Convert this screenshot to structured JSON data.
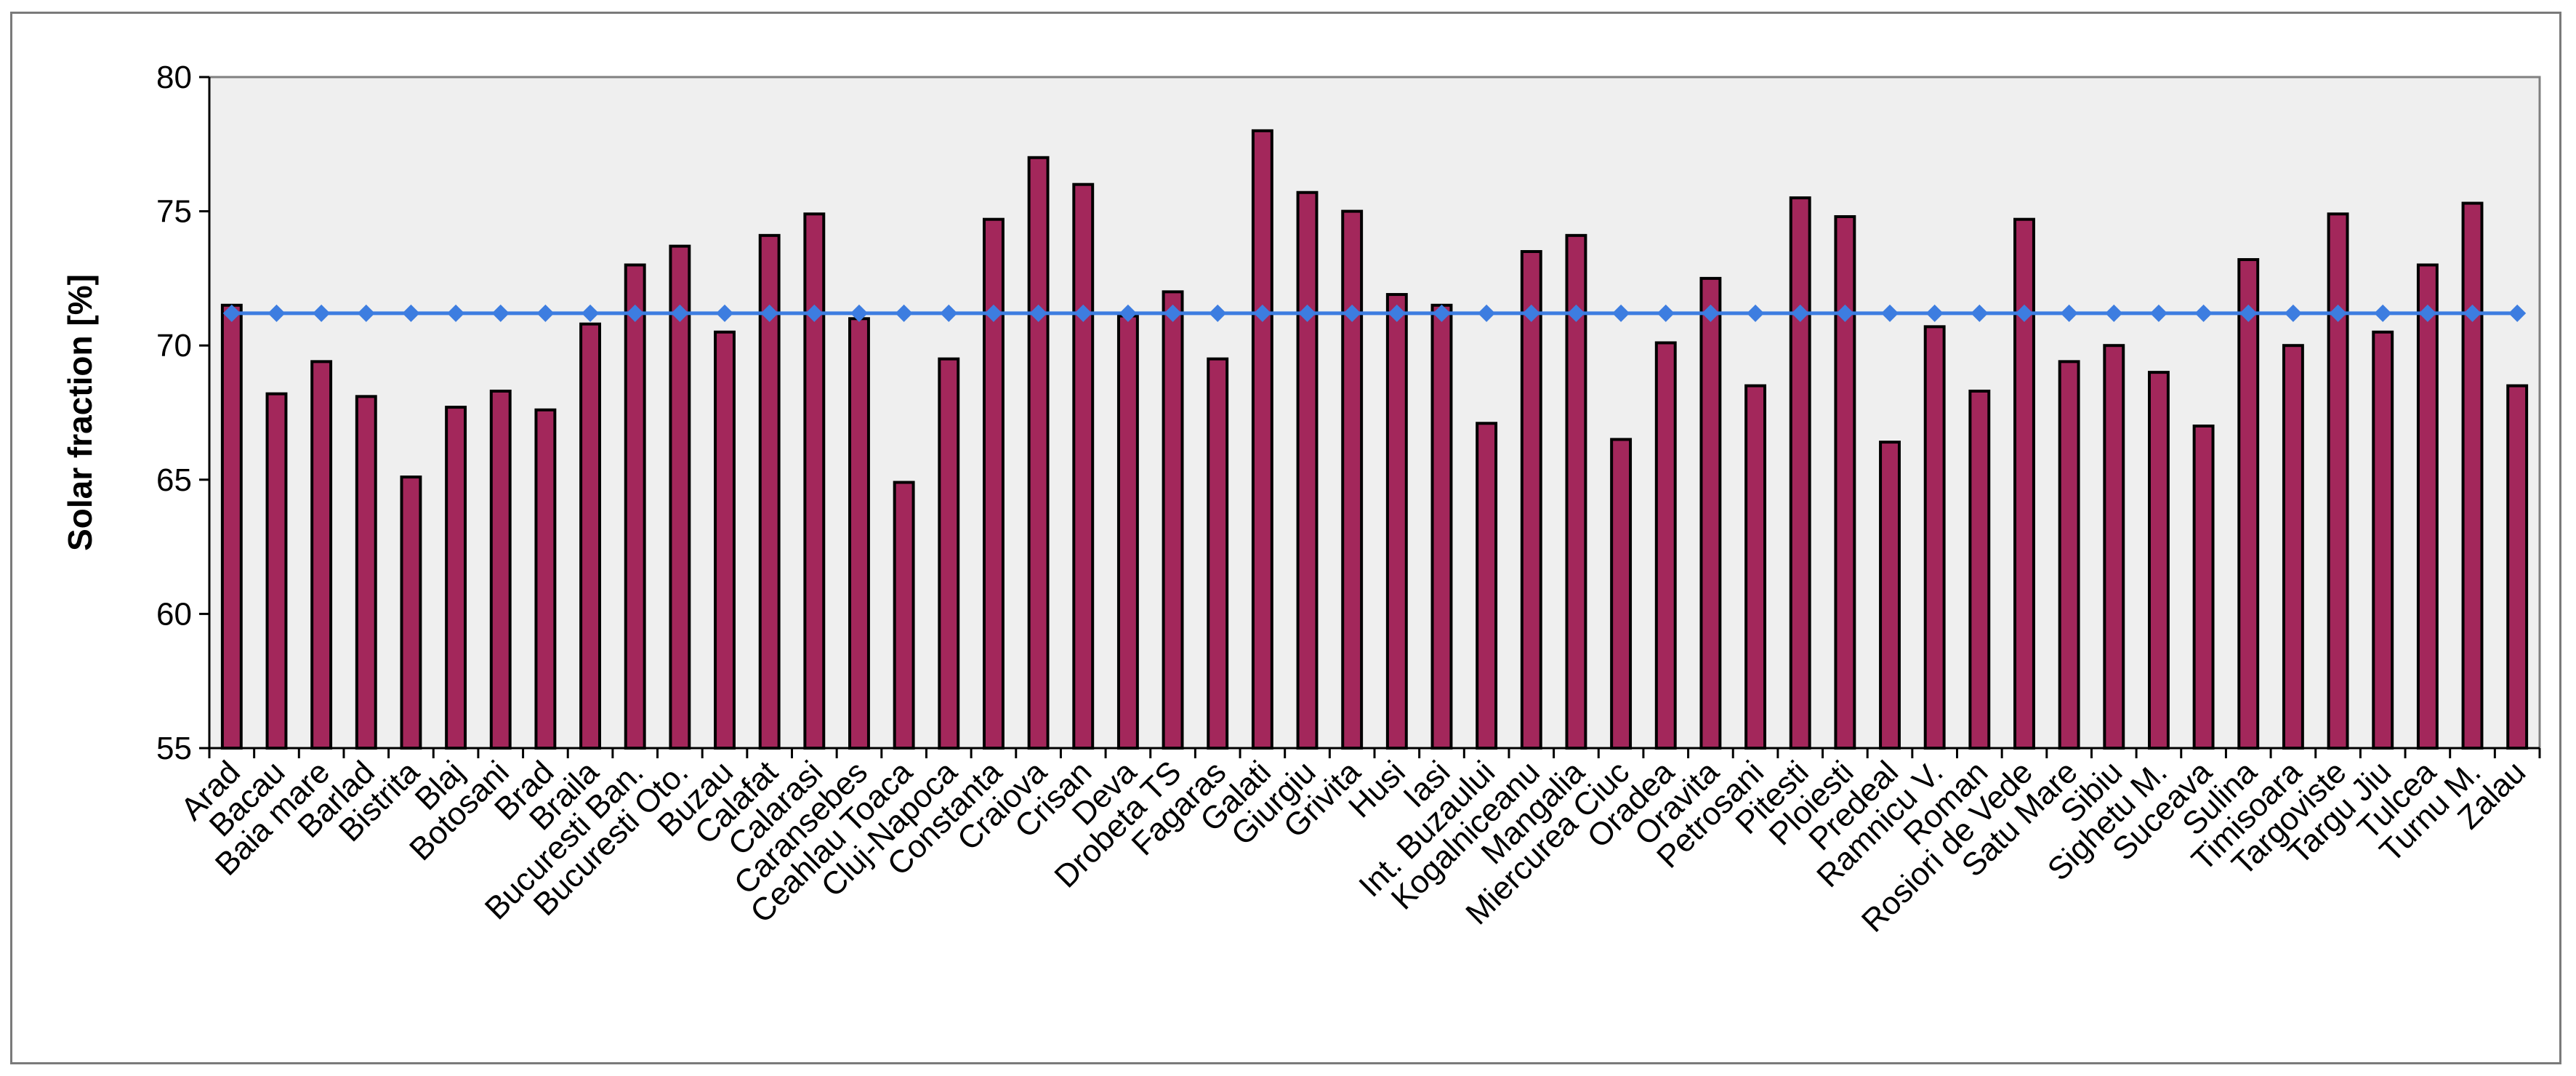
{
  "chart_data": {
    "type": "bar",
    "ylabel": "Solar fraction [%]",
    "xlabel": "",
    "ylim": [
      55,
      80
    ],
    "yticks": [
      55,
      60,
      65,
      70,
      75,
      80
    ],
    "grid": false,
    "categories": [
      "Arad",
      "Bacau",
      "Baia mare",
      "Barlad",
      "Bistrita",
      "Blaj",
      "Botosani",
      "Brad",
      "Braila",
      "Bucuresti Ban.",
      "Bucuresti Oto.",
      "Buzau",
      "Calafat",
      "Calarasi",
      "Caransebes",
      "Ceahlau Toaca",
      "Cluj-Napoca",
      "Constanta",
      "Craiova",
      "Crisan",
      "Deva",
      "Drobeta TS",
      "Fagaras",
      "Galati",
      "Giurgiu",
      "Grivita",
      "Husi",
      "Iasi",
      "Int. Buzaului",
      "Kogalniceanu",
      "Mangalia",
      "Miercurea Ciuc",
      "Oradea",
      "Oravita",
      "Petrosani",
      "Pitesti",
      "Ploiesti",
      "Predeal",
      "Ramnicu V.",
      "Roman",
      "Rosiori de Vede",
      "Satu Mare",
      "Sibiu",
      "Sighetu M.",
      "Suceava",
      "Sulina",
      "Timisoara",
      "Targoviste",
      "Targu Jiu",
      "Tulcea",
      "Turnu M.",
      "Zalau"
    ],
    "series": [
      {
        "type": "bar",
        "color": "#a3275b",
        "values": [
          71.5,
          68.2,
          69.4,
          68.1,
          65.1,
          67.7,
          68.3,
          67.6,
          70.8,
          73.0,
          73.7,
          70.5,
          74.1,
          74.9,
          71.0,
          64.9,
          69.5,
          74.7,
          77.0,
          76.0,
          71.1,
          72.0,
          69.5,
          78.0,
          75.7,
          75.0,
          71.9,
          71.5,
          67.1,
          73.5,
          74.1,
          66.5,
          70.1,
          72.5,
          68.5,
          75.5,
          74.8,
          66.4,
          70.7,
          68.3,
          74.7,
          69.4,
          70.0,
          69.0,
          67.0,
          73.2,
          70.0,
          74.9,
          70.5,
          73.0,
          75.3,
          68.5
        ]
      },
      {
        "type": "line",
        "color": "#3d7de0",
        "marker": "diamond",
        "constant_value": 71.2
      }
    ]
  }
}
